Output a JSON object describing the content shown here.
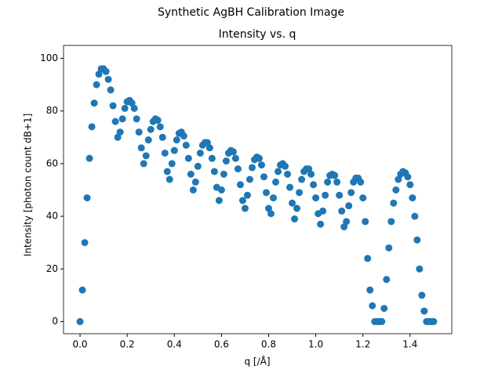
{
  "chart_data": {
    "type": "scatter",
    "suptitle": "Synthetic AgBH Calibration Image",
    "title": "Intensity vs.  q",
    "x_label": "q [/Å]",
    "y_label": "Intensity [photon count dB+1]",
    "color": "#1f77b4",
    "xlim": [
      -0.07,
      1.577
    ],
    "ylim": [
      -4.6,
      104.9
    ],
    "xticks": [
      {
        "value": 0,
        "label": "0.0"
      },
      {
        "value": 0.2,
        "label": "0.2"
      },
      {
        "value": 0.4,
        "label": "0.4"
      },
      {
        "value": 0.6,
        "label": "0.6"
      },
      {
        "value": 0.8,
        "label": "0.8"
      },
      {
        "value": 1.0,
        "label": "1.0"
      },
      {
        "value": 1.2,
        "label": "1.2"
      },
      {
        "value": 1.4,
        "label": "1.4"
      }
    ],
    "yticks": [
      0,
      20,
      40,
      60,
      80,
      100
    ],
    "x": [
      0.0,
      0.01,
      0.02,
      0.03,
      0.04,
      0.05,
      0.06,
      0.07,
      0.08,
      0.09,
      0.1,
      0.11,
      0.12,
      0.13,
      0.14,
      0.15,
      0.16,
      0.17,
      0.18,
      0.19,
      0.2,
      0.21,
      0.22,
      0.23,
      0.24,
      0.25,
      0.26,
      0.27,
      0.28,
      0.29,
      0.3,
      0.31,
      0.32,
      0.33,
      0.34,
      0.35,
      0.36,
      0.37,
      0.38,
      0.39,
      0.4,
      0.41,
      0.42,
      0.43,
      0.44,
      0.45,
      0.46,
      0.47,
      0.48,
      0.49,
      0.5,
      0.51,
      0.52,
      0.53,
      0.54,
      0.55,
      0.56,
      0.57,
      0.58,
      0.59,
      0.6,
      0.61,
      0.62,
      0.63,
      0.64,
      0.65,
      0.66,
      0.67,
      0.68,
      0.69,
      0.7,
      0.71,
      0.72,
      0.73,
      0.74,
      0.75,
      0.76,
      0.77,
      0.78,
      0.79,
      0.8,
      0.81,
      0.82,
      0.83,
      0.84,
      0.85,
      0.86,
      0.87,
      0.88,
      0.89,
      0.9,
      0.91,
      0.92,
      0.93,
      0.94,
      0.95,
      0.96,
      0.97,
      0.98,
      0.99,
      1.0,
      1.01,
      1.02,
      1.03,
      1.04,
      1.05,
      1.06,
      1.07,
      1.08,
      1.09,
      1.1,
      1.11,
      1.12,
      1.13,
      1.14,
      1.15,
      1.16,
      1.17,
      1.18,
      1.19,
      1.2,
      1.21,
      1.22,
      1.23,
      1.24,
      1.25,
      1.26,
      1.27,
      1.28,
      1.29,
      1.3,
      1.31,
      1.32,
      1.33,
      1.34,
      1.35,
      1.36,
      1.37,
      1.38,
      1.39,
      1.4,
      1.41,
      1.42,
      1.43,
      1.44,
      1.45,
      1.46,
      1.47,
      1.48,
      1.49,
      1.5
    ],
    "values": [
      0,
      12,
      30,
      47,
      62,
      74,
      83,
      90,
      94,
      96,
      96,
      95,
      92,
      88,
      82,
      76,
      70,
      72,
      77,
      81,
      83.5,
      84,
      83,
      81,
      77,
      72,
      66,
      60,
      63,
      69,
      73,
      76,
      77,
      76.5,
      74,
      70,
      64,
      57,
      54,
      60,
      65,
      69,
      71.5,
      72,
      70.5,
      67,
      62,
      56,
      50,
      53,
      59,
      64,
      67,
      68,
      68,
      66,
      62,
      57,
      51,
      46,
      50,
      56,
      61,
      64,
      65,
      64.5,
      62,
      58,
      52,
      46,
      43,
      48,
      54,
      58.5,
      61.5,
      62.5,
      62,
      59.5,
      55,
      49,
      43,
      41,
      47,
      53,
      57,
      59.5,
      60,
      59,
      56,
      51,
      45,
      39,
      43,
      49,
      54,
      57,
      58,
      58,
      56,
      52,
      47,
      41,
      37,
      42,
      48,
      53,
      55.5,
      56,
      55.5,
      53,
      48,
      42,
      36,
      38,
      44,
      49,
      53,
      54.5,
      54.5,
      53,
      47,
      38,
      24,
      12,
      6,
      0,
      0,
      0,
      0,
      5,
      16,
      28,
      38,
      45,
      50,
      54,
      56,
      57,
      56.5,
      55,
      52,
      47,
      40,
      31,
      20,
      10,
      4,
      0,
      0,
      0,
      0
    ]
  }
}
